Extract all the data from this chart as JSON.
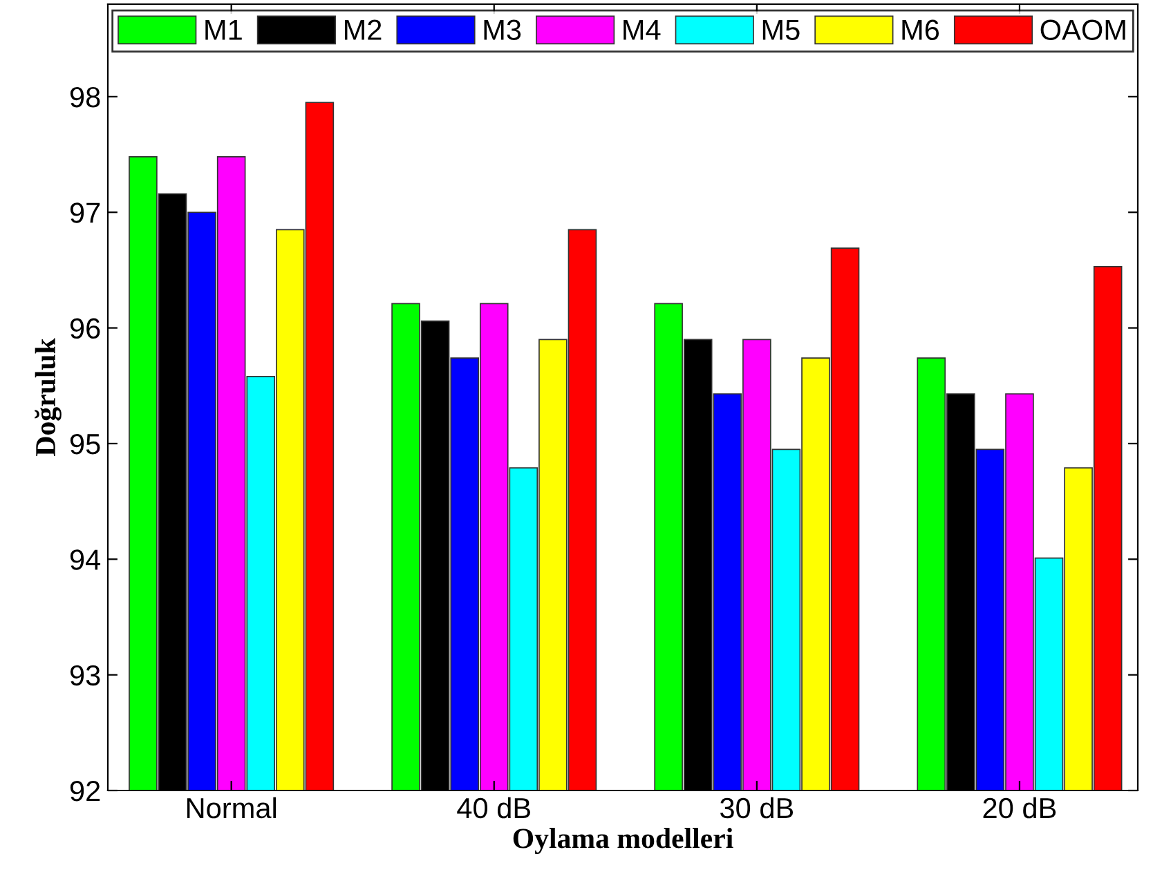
{
  "chart_data": {
    "type": "bar",
    "xlabel": "Oylama modelleri",
    "ylabel": "Doğruluk",
    "categories": [
      "Normal",
      "40 dB",
      "30 dB",
      "20 dB"
    ],
    "series": [
      {
        "name": "M1",
        "color": "#00ff00",
        "values": [
          97.48,
          96.21,
          96.21,
          95.74
        ]
      },
      {
        "name": "M2",
        "color": "#000000",
        "values": [
          97.16,
          96.06,
          95.9,
          95.43
        ]
      },
      {
        "name": "M3",
        "color": "#0000ff",
        "values": [
          97.0,
          95.74,
          95.43,
          94.95
        ]
      },
      {
        "name": "M4",
        "color": "#ff00ff",
        "values": [
          97.48,
          96.21,
          95.9,
          95.43
        ]
      },
      {
        "name": "M5",
        "color": "#00ffff",
        "values": [
          95.58,
          94.79,
          94.95,
          94.01
        ]
      },
      {
        "name": "M6",
        "color": "#ffff00",
        "values": [
          96.85,
          95.9,
          95.74,
          94.79
        ]
      },
      {
        "name": "OAOM",
        "color": "#ff0000",
        "values": [
          97.95,
          96.85,
          96.69,
          96.53
        ]
      }
    ],
    "ylim": [
      92,
      98.8
    ],
    "yticks": [
      92,
      93,
      94,
      95,
      96,
      97,
      98
    ],
    "grid": false,
    "legend": "top"
  }
}
